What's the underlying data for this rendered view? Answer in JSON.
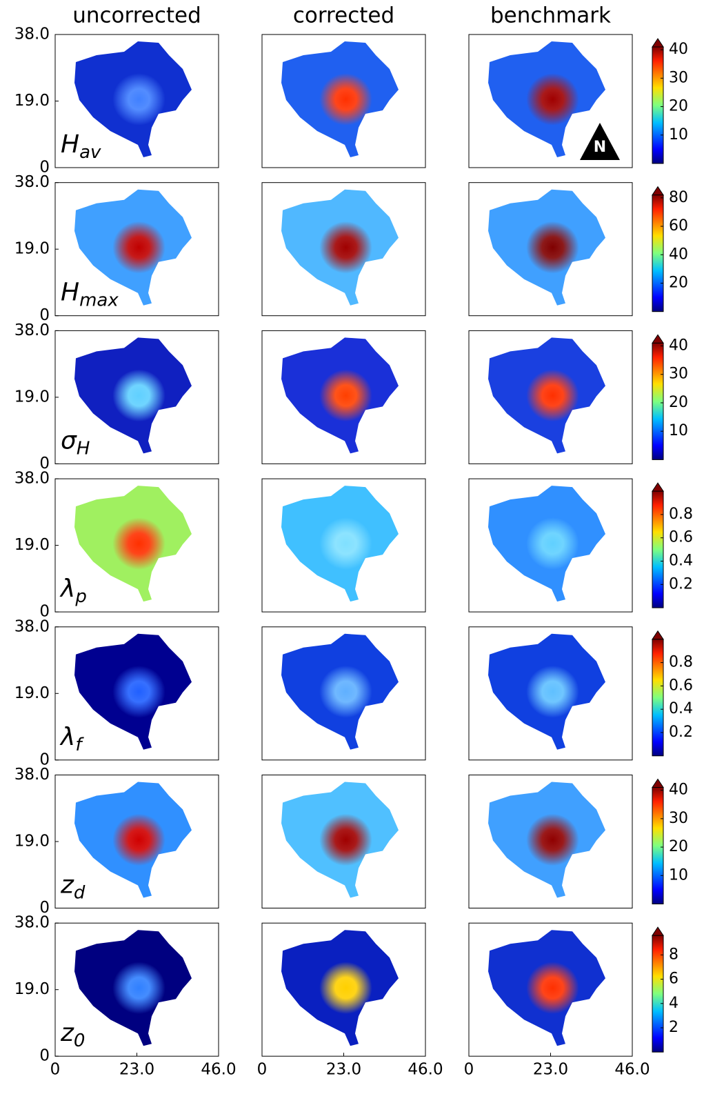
{
  "columns": [
    "uncorrected",
    "corrected",
    "benchmark"
  ],
  "ylim": [
    0,
    38
  ],
  "yticks": [
    {
      "value": 38,
      "label": "38.0"
    },
    {
      "value": 19,
      "label": "19.0"
    },
    0
  ],
  "xlim": [
    0,
    46
  ],
  "xticks": [
    0,
    {
      "value": 23,
      "label": "23.0"
    },
    {
      "value": 46,
      "label": "46.0"
    }
  ],
  "north": "N",
  "rows": [
    {
      "symbol": "H",
      "sub": "av",
      "colorbar": {
        "lim": [
          0,
          41
        ],
        "ticks": [
          10,
          20,
          30,
          40
        ]
      }
    },
    {
      "symbol": "H",
      "sub": "max",
      "colorbar": {
        "lim": [
          0,
          82
        ],
        "ticks": [
          20,
          40,
          60,
          80
        ]
      }
    },
    {
      "symbol": "σ",
      "sub": "H",
      "colorbar": {
        "lim": [
          0,
          41
        ],
        "ticks": [
          10,
          20,
          30,
          40
        ]
      }
    },
    {
      "symbol": "λ",
      "sub": "p",
      "colorbar": {
        "lim": [
          0,
          1
        ],
        "ticks": [
          0.2,
          0.4,
          0.6,
          0.8
        ]
      }
    },
    {
      "symbol": "λ",
      "sub": "f",
      "colorbar": {
        "lim": [
          0,
          1
        ],
        "ticks": [
          0.2,
          0.4,
          0.6,
          0.8
        ]
      }
    },
    {
      "symbol": "z",
      "sub": "d",
      "colorbar": {
        "lim": [
          0,
          41
        ],
        "ticks": [
          10,
          20,
          30,
          40
        ]
      }
    },
    {
      "symbol": "z",
      "sub": "0",
      "colorbar": {
        "lim": [
          0,
          9.6
        ],
        "ticks": [
          2,
          4,
          6,
          8
        ]
      }
    }
  ]
}
